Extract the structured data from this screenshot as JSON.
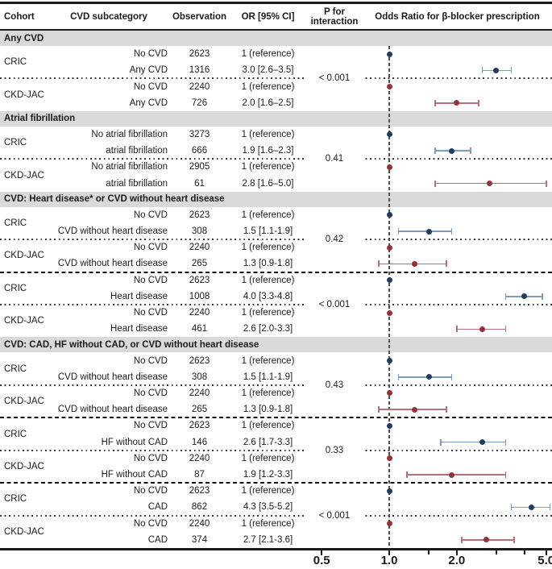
{
  "header": {
    "cohort": "Cohort",
    "subcategory": "CVD subcategory",
    "observation": "Observation",
    "or_ci": "OR [95% CI]",
    "p_line1": "P for",
    "p_line2": "interaction",
    "plot_title": "Odds Ratio for β-blocker prescription"
  },
  "chart_data": {
    "type": "scatter",
    "subtype": "forest-plot",
    "title": "Odds Ratio for β-blocker prescription",
    "x_scale": "log",
    "xlim": [
      0.45,
      5.6
    ],
    "reference_line": 1.0,
    "axis": {
      "ticks": [
        {
          "v": 0.5,
          "label": "0.5"
        },
        {
          "v": 1.0,
          "label": "1.0"
        },
        {
          "v": 1.5,
          "label": ""
        },
        {
          "v": 2.0,
          "label": "2.0"
        },
        {
          "v": 3.0,
          "label": ""
        },
        {
          "v": 4.0,
          "label": ""
        },
        {
          "v": 5.0,
          "label": "5.0"
        }
      ]
    },
    "colors": {
      "cric_dot": "#1f3c61",
      "cric_line": "#7d9cbc",
      "ckdjac_dot": "#97303a",
      "ckdjac_line": "#b7707a",
      "band_bg": "#d9d9d9",
      "rule": "#1a1a1a",
      "reference_dash": "#4d4d4d"
    },
    "sections": [
      {
        "title": "Any CVD",
        "blocks": [
          {
            "p_label": "< 0.001",
            "groups": [
              {
                "cohort": "CRIC",
                "series": "cric",
                "rows": [
                  {
                    "label": "No CVD",
                    "n": "2623",
                    "or_text": "1 (reference)",
                    "or": 1.0,
                    "ref": true
                  },
                  {
                    "label": "Any CVD",
                    "n": "1316",
                    "or_text": "3.0 [2.6–3.5]",
                    "or": 3.0,
                    "lo": 2.6,
                    "hi": 3.5
                  }
                ]
              },
              {
                "cohort": "CKD-JAC",
                "series": "ckdjac",
                "rows": [
                  {
                    "label": "No CVD",
                    "n": "2240",
                    "or_text": "1 (reference)",
                    "or": 1.0,
                    "ref": true
                  },
                  {
                    "label": "Any CVD",
                    "n": "726",
                    "or_text": "2.0 [1.6–2.5]",
                    "or": 2.0,
                    "lo": 1.6,
                    "hi": 2.5
                  }
                ]
              }
            ]
          }
        ]
      },
      {
        "title": "Atrial fibrillation",
        "blocks": [
          {
            "p_label": "0.41",
            "groups": [
              {
                "cohort": "CRIC",
                "series": "cric",
                "rows": [
                  {
                    "label": "No atrial fibrillation",
                    "n": "3273",
                    "or_text": "1 (reference)",
                    "or": 1.0,
                    "ref": true
                  },
                  {
                    "label": "atrial fibrillation",
                    "n": "666",
                    "or_text": "1.9 [1.6–2.3]",
                    "or": 1.9,
                    "lo": 1.6,
                    "hi": 2.3
                  }
                ]
              },
              {
                "cohort": "CKD-JAC",
                "series": "ckdjac",
                "rows": [
                  {
                    "label": "No atrial fibrillation",
                    "n": "2905",
                    "or_text": "1 (reference)",
                    "or": 1.0,
                    "ref": true
                  },
                  {
                    "label": "atrial fibrillation",
                    "n": "61",
                    "or_text": "2.8 [1.6–5.0]",
                    "or": 2.8,
                    "lo": 1.6,
                    "hi": 5.0
                  }
                ]
              }
            ]
          }
        ]
      },
      {
        "title": "CVD: Heart disease* or CVD without heart disease",
        "blocks": [
          {
            "p_label": "0.42",
            "groups": [
              {
                "cohort": "CRIC",
                "series": "cric",
                "rows": [
                  {
                    "label": "No CVD",
                    "n": "2623",
                    "or_text": "1 (reference)",
                    "or": 1.0,
                    "ref": true
                  },
                  {
                    "label": "CVD without heart disease",
                    "n": "308",
                    "or_text": "1.5 [1.1-1.9]",
                    "or": 1.5,
                    "lo": 1.1,
                    "hi": 1.9
                  }
                ]
              },
              {
                "cohort": "CKD-JAC",
                "series": "ckdjac",
                "rows": [
                  {
                    "label": "No CVD",
                    "n": "2240",
                    "or_text": "1 (reference)",
                    "or": 1.0,
                    "ref": true
                  },
                  {
                    "label": "CVD without heart disease",
                    "n": "265",
                    "or_text": "1.3 [0.9-1.8]",
                    "or": 1.3,
                    "lo": 0.9,
                    "hi": 1.8
                  }
                ]
              }
            ]
          },
          {
            "p_label": "< 0.001",
            "groups": [
              {
                "cohort": "CRIC",
                "series": "cric",
                "rows": [
                  {
                    "label": "No CVD",
                    "n": "2623",
                    "or_text": "1 (reference)",
                    "or": 1.0,
                    "ref": true
                  },
                  {
                    "label": "Heart disease",
                    "n": "1008",
                    "or_text": "4.0 [3.3-4.8]",
                    "or": 4.0,
                    "lo": 3.3,
                    "hi": 4.8
                  }
                ]
              },
              {
                "cohort": "CKD-JAC",
                "series": "ckdjac",
                "rows": [
                  {
                    "label": "No CVD",
                    "n": "2240",
                    "or_text": "1 (reference)",
                    "or": 1.0,
                    "ref": true
                  },
                  {
                    "label": "Heart disease",
                    "n": "461",
                    "or_text": "2.6 [2.0-3.3]",
                    "or": 2.6,
                    "lo": 2.0,
                    "hi": 3.3
                  }
                ]
              }
            ]
          }
        ]
      },
      {
        "title": "CVD: CAD, HF without CAD, or CVD without heart disease",
        "blocks": [
          {
            "p_label": "0.43",
            "groups": [
              {
                "cohort": "CRIC",
                "series": "cric",
                "rows": [
                  {
                    "label": "No CVD",
                    "n": "2623",
                    "or_text": "1 (reference)",
                    "or": 1.0,
                    "ref": true
                  },
                  {
                    "label": "CVD without heart disease",
                    "n": "308",
                    "or_text": "1.5 [1.1-1.9]",
                    "or": 1.5,
                    "lo": 1.1,
                    "hi": 1.9
                  }
                ]
              },
              {
                "cohort": "CKD-JAC",
                "series": "ckdjac",
                "rows": [
                  {
                    "label": "No CVD",
                    "n": "2240",
                    "or_text": "1 (reference)",
                    "or": 1.0,
                    "ref": true
                  },
                  {
                    "label": "CVD without heart disease",
                    "n": "265",
                    "or_text": "1.3 [0.9-1.8]",
                    "or": 1.3,
                    "lo": 0.9,
                    "hi": 1.8
                  }
                ]
              }
            ]
          },
          {
            "p_label": "0.33",
            "groups": [
              {
                "cohort": "CRIC",
                "series": "cric",
                "rows": [
                  {
                    "label": "No CVD",
                    "n": "2623",
                    "or_text": "1 (reference)",
                    "or": 1.0,
                    "ref": true
                  },
                  {
                    "label": "HF without CAD",
                    "n": "146",
                    "or_text": "2.6 [1.7-3.3]",
                    "or": 2.6,
                    "lo": 1.7,
                    "hi": 3.3
                  }
                ]
              },
              {
                "cohort": "CKD-JAC",
                "series": "ckdjac",
                "rows": [
                  {
                    "label": "No CVD",
                    "n": "2240",
                    "or_text": "1 (reference)",
                    "or": 1.0,
                    "ref": true
                  },
                  {
                    "label": "HF without CAD",
                    "n": "87",
                    "or_text": "1.9 [1.2-3.3]",
                    "or": 1.9,
                    "lo": 1.2,
                    "hi": 3.3
                  }
                ]
              }
            ]
          },
          {
            "p_label": "< 0.001",
            "groups": [
              {
                "cohort": "CRIC",
                "series": "cric",
                "rows": [
                  {
                    "label": "No CVD",
                    "n": "2623",
                    "or_text": "1 (reference)",
                    "or": 1.0,
                    "ref": true
                  },
                  {
                    "label": "CAD",
                    "n": "862",
                    "or_text": "4.3 [3.5-5.2]",
                    "or": 4.3,
                    "lo": 3.5,
                    "hi": 5.2
                  }
                ]
              },
              {
                "cohort": "CKD-JAC",
                "series": "ckdjac",
                "rows": [
                  {
                    "label": "No CVD",
                    "n": "2240",
                    "or_text": "1 (reference)",
                    "or": 1.0,
                    "ref": true
                  },
                  {
                    "label": "CAD",
                    "n": "374",
                    "or_text": "2.7 [2.1-3.6]",
                    "or": 2.7,
                    "lo": 2.1,
                    "hi": 3.6
                  }
                ]
              }
            ]
          }
        ]
      }
    ]
  }
}
